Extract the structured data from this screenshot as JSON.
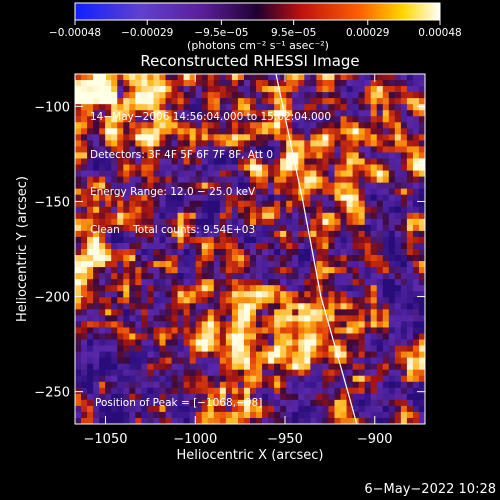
{
  "chart_data": {
    "type": "heatmap",
    "title": "Reconstructed RHESSI Image",
    "xlabel": "Heliocentric X (arcsec)",
    "ylabel": "Heliocentric Y (arcsec)",
    "xlim": [
      -1067,
      -872
    ],
    "ylim": [
      -267,
      -83
    ],
    "x_ticks": [
      -1050,
      -1000,
      -950,
      -900
    ],
    "x_tick_labels": [
      "−1050",
      "−1000",
      "−950",
      "−900"
    ],
    "y_ticks": [
      -100,
      -150,
      -200,
      -250
    ],
    "y_tick_labels": [
      "−100",
      "−150",
      "−200",
      "−250"
    ],
    "grid": false,
    "colorbar": {
      "ticks": [
        -0.00048,
        -0.00029,
        -9.5e-05,
        9.5e-05,
        0.00029,
        0.00048
      ],
      "tick_labels": [
        "−0.00048",
        "−0.00029",
        "−9.5e−05",
        "9.5e−05",
        "0.00029",
        "0.00048"
      ],
      "units": "(photons cm⁻² s⁻¹ asec⁻²)",
      "range": [
        -0.00048,
        0.00048
      ]
    },
    "annotations": [
      "14−May−2006 14:56:04.000 to 15:02:04.000",
      "Detectors: 3F 4F 5F 6F 7F 8F, Att 0",
      "Energy Range: 12.0 − 25.0 keV",
      "Clean    Total counts: 9.54E+03"
    ],
    "peak_label": "Position of Peak = [−1068,−98]",
    "peak": [
      -1068,
      -98
    ],
    "limb_curve": [
      [
        -955,
        -83
      ],
      [
        -940,
        -150
      ],
      [
        -930,
        -200
      ],
      [
        -915,
        -250
      ],
      [
        -910,
        -267
      ]
    ]
  },
  "footer": {
    "date": "6−May−2022 10:28"
  },
  "colors": {
    "background": "#000000",
    "frame": "#ffffff",
    "low": "#2a0c8a",
    "mid": "#b01818",
    "high": "#ffffff"
  }
}
